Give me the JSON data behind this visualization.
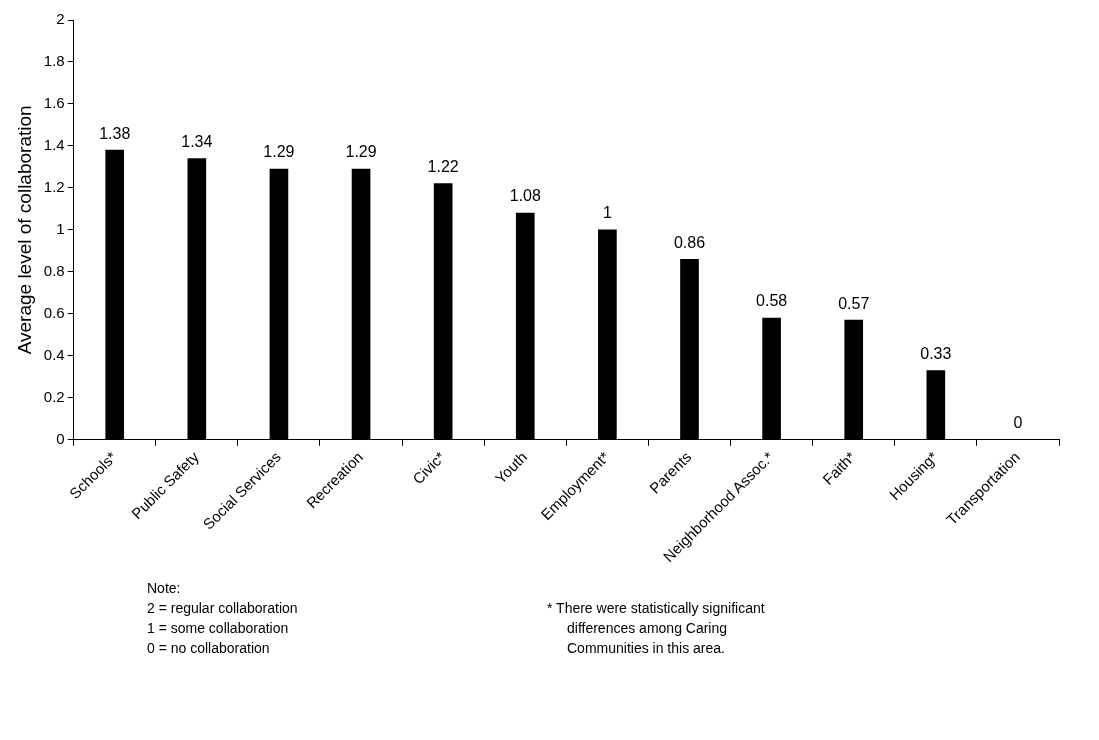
{
  "chart_data": {
    "type": "bar",
    "ylabel": "Average level of collaboration",
    "categories": [
      "Schools*",
      "Public Safety",
      "Social Services",
      "Recreation",
      "Civic*",
      "Youth",
      "Employment*",
      "Parents",
      "Neighborhood Assoc.*",
      "Faith*",
      "Housing*",
      "Transportation"
    ],
    "values": [
      1.38,
      1.34,
      1.29,
      1.29,
      1.22,
      1.08,
      1,
      0.86,
      0.58,
      0.57,
      0.33,
      0
    ],
    "color": "#000000",
    "ylim": [
      0,
      2
    ],
    "yticks": [
      0,
      0.2,
      0.4,
      0.6,
      0.8,
      1,
      1.2,
      1.4,
      1.6,
      1.8,
      2
    ],
    "grid": false,
    "data_labels": true,
    "legend": false,
    "annotations": [
      "Note:",
      "2 = regular collaboration",
      "1 = some collaboration",
      "0 = no collaboration",
      "* There were statistically significant differences among Caring Communities in this area."
    ]
  }
}
